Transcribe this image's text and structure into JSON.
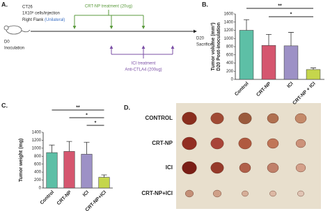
{
  "panel_labels": [
    "A.",
    "B.",
    "C.",
    "D."
  ],
  "timeline": {
    "cells": "CT26",
    "dose": "1X10⁶ cells/injection",
    "site": "Right Flank",
    "site_note": "(Unilateral)",
    "start": "D0",
    "start_label": "Inoculation",
    "crt_title": "CRT-NP treatment (20ug)",
    "crt_days": [
      "D7",
      "D10",
      "D13"
    ],
    "ici_days": [
      "D10",
      "D13",
      "D16"
    ],
    "ici_title": "ICI treatment",
    "ici_drug": "Anti-CTLA4 (200ug)",
    "end": "D20",
    "end_label": "Sacrifice"
  },
  "chart_data": [
    {
      "type": "bar",
      "y_label": [
        "Tumor volume (mm³)",
        "D20 Post-inoculation"
      ],
      "categories": [
        "Control",
        "CRT-NP",
        "ICI",
        "CRT-NP + ICI"
      ],
      "values": [
        1200,
        830,
        820,
        240
      ],
      "errors": [
        260,
        270,
        330,
        40
      ],
      "colors": [
        "#5dbfa6",
        "#d5566f",
        "#9d91c6",
        "#c5d64c"
      ],
      "ylim": [
        0,
        1600
      ],
      "yticks": [
        0,
        200,
        400,
        600,
        800,
        1000,
        1200,
        1400,
        1600
      ],
      "significance": [
        {
          "label": "**",
          "between": [
            "Control",
            "CRT-NP + ICI"
          ]
        },
        {
          "label": "*",
          "between": [
            "CRT-NP",
            "CRT-NP + ICI"
          ]
        }
      ]
    },
    {
      "type": "bar",
      "y_label": [
        "Tumor weight (mg)"
      ],
      "categories": [
        "Control",
        "CRT-NP",
        "ICI",
        "CRT-NP+ICI"
      ],
      "values": [
        890,
        920,
        850,
        270
      ],
      "errors": [
        190,
        250,
        300,
        60
      ],
      "colors": [
        "#5dbfa6",
        "#d5566f",
        "#9d91c6",
        "#c5d64c"
      ],
      "ylim": [
        0,
        1400
      ],
      "yticks": [
        0,
        200,
        400,
        600,
        800,
        1000,
        1200,
        1400
      ],
      "significance": [
        {
          "label": "**",
          "between": [
            "Control",
            "CRT-NP+ICI"
          ]
        },
        {
          "label": "*",
          "between": [
            "CRT-NP",
            "CRT-NP+ICI"
          ]
        },
        {
          "label": "*",
          "between": [
            "ICI",
            "CRT-NP+ICI"
          ]
        }
      ]
    }
  ],
  "photo": {
    "rows": [
      "CONTROL",
      "CRT-NP",
      "ICI",
      "CRT-NP+ICI"
    ]
  }
}
